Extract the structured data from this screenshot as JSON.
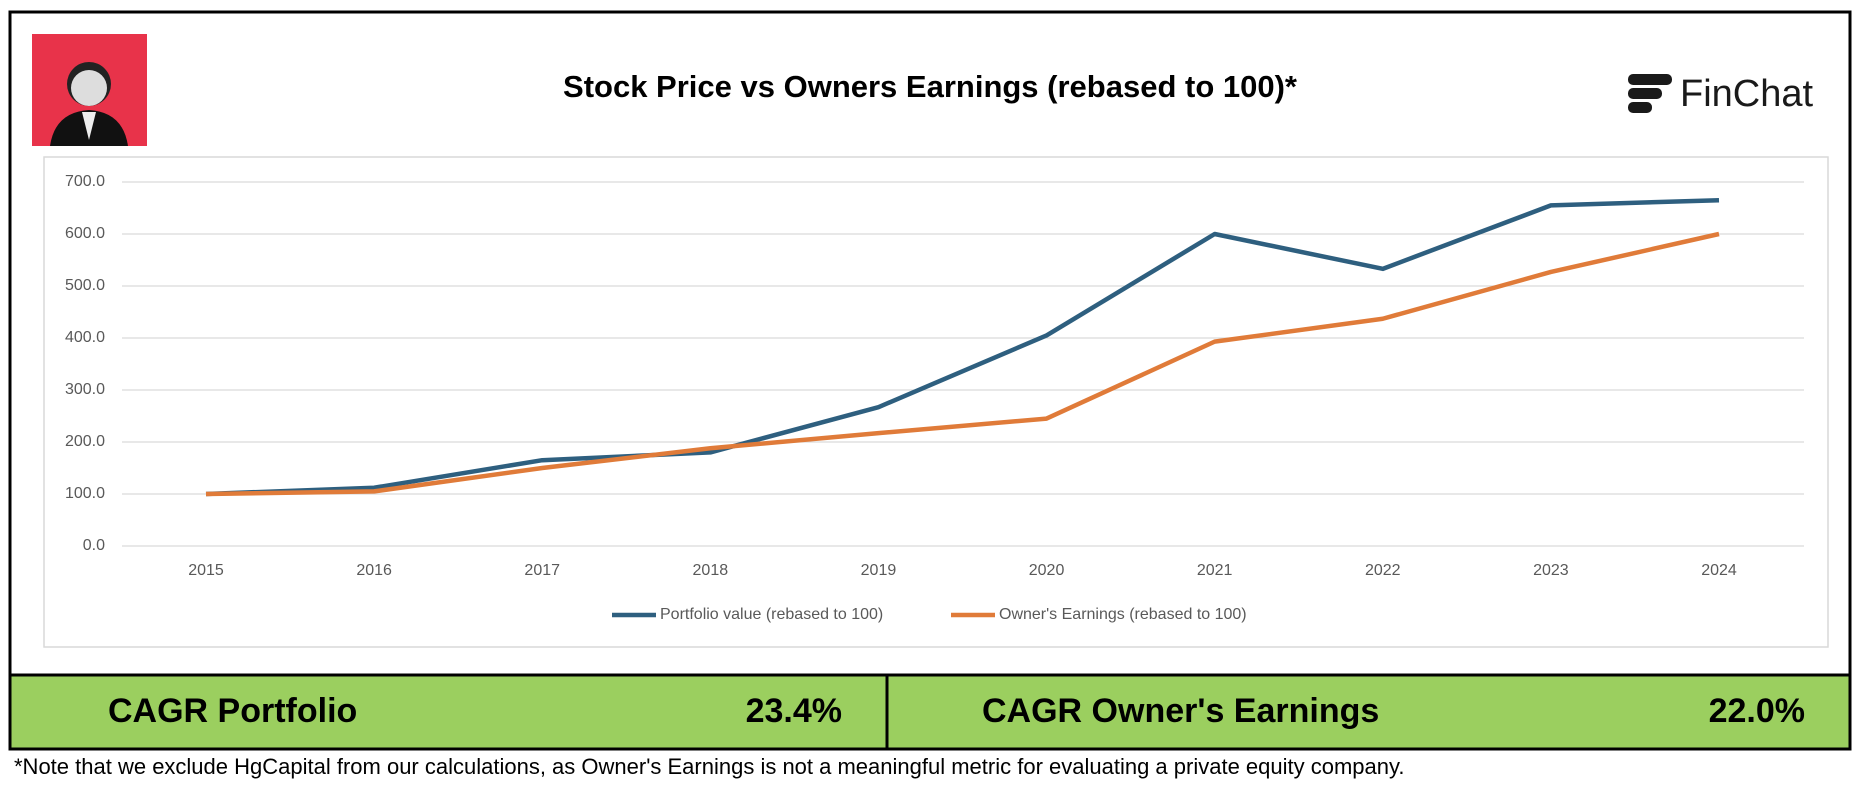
{
  "brand": "FinChat",
  "chart_data": {
    "type": "line",
    "title": "Stock Price vs Owners Earnings (rebased to 100)*",
    "categories": [
      "2015",
      "2016",
      "2017",
      "2018",
      "2019",
      "2020",
      "2021",
      "2022",
      "2023",
      "2024"
    ],
    "series": [
      {
        "name": "Portfolio value (rebased to 100)",
        "color": "#2e5f7f",
        "values": [
          100,
          112,
          165,
          180,
          267,
          405,
          600,
          533,
          655,
          665
        ]
      },
      {
        "name": "Owner's Earnings (rebased to 100)",
        "color": "#e07b39",
        "values": [
          100,
          105,
          150,
          188,
          217,
          245,
          393,
          437,
          527,
          600
        ]
      }
    ],
    "ylim": [
      0,
      700
    ],
    "yticks": [
      {
        "value": 0,
        "label": "0.0"
      },
      {
        "value": 100,
        "label": "100.0"
      },
      {
        "value": 200,
        "label": "200.0"
      },
      {
        "value": 300,
        "label": "300.0"
      },
      {
        "value": 400,
        "label": "400.0"
      },
      {
        "value": 500,
        "label": "500.0"
      },
      {
        "value": 600,
        "label": "600.0"
      },
      {
        "value": 700,
        "label": "700.0"
      }
    ],
    "grid": true,
    "legend": "bottom"
  },
  "summary": [
    {
      "label": "CAGR Portfolio",
      "value": "23.4%"
    },
    {
      "label": "CAGR Owner's Earnings",
      "value": "22.0%"
    }
  ],
  "note": "*Note that we exclude HgCapital from our calculations, as Owner's Earnings is not a meaningful metric for evaluating a private equity company."
}
